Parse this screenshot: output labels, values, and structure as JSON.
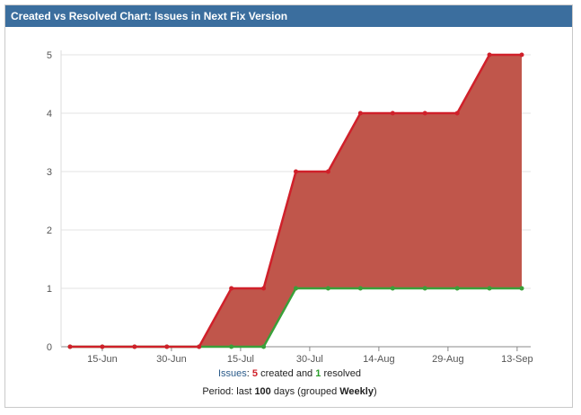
{
  "header": {
    "title": "Created vs Resolved Chart: Issues in Next Fix Version"
  },
  "chart_data": {
    "type": "area",
    "x": [
      "2010-06-08",
      "2010-06-15",
      "2010-06-22",
      "2010-06-29",
      "2010-07-06",
      "2010-07-13",
      "2010-07-20",
      "2010-07-27",
      "2010-08-03",
      "2010-08-10",
      "2010-08-17",
      "2010-08-24",
      "2010-08-31",
      "2010-09-07",
      "2010-09-14"
    ],
    "x_tick_labels": [
      "15-Jun",
      "30-Jun",
      "15-Jul",
      "30-Jul",
      "14-Aug",
      "29-Aug",
      "13-Sep"
    ],
    "x_tick_dates": [
      "2010-06-15",
      "2010-06-30",
      "2010-07-15",
      "2010-07-30",
      "2010-08-14",
      "2010-08-29",
      "2010-09-13"
    ],
    "series": [
      {
        "name": "created",
        "values": [
          0,
          0,
          0,
          0,
          0,
          1,
          1,
          3,
          3,
          4,
          4,
          4,
          4,
          5,
          5
        ],
        "color": "#d0202a",
        "fill": "#c0564b"
      },
      {
        "name": "resolved",
        "values": [
          0,
          0,
          0,
          0,
          0,
          0,
          0,
          1,
          1,
          1,
          1,
          1,
          1,
          1,
          1
        ],
        "color": "#3aa03a"
      }
    ],
    "ylim": [
      0,
      5
    ],
    "y_ticks": [
      "0",
      "1",
      "2",
      "3",
      "4",
      "5"
    ],
    "grid": true
  },
  "legend": {
    "issues_label": "Issues",
    "created_count": "5",
    "created_text": "created and",
    "resolved_count": "1",
    "resolved_text": "resolved",
    "period_prefix": "Period: last",
    "period_days": "100",
    "period_mid": "days (grouped",
    "period_group": "Weekly",
    "period_suffix": ")"
  }
}
